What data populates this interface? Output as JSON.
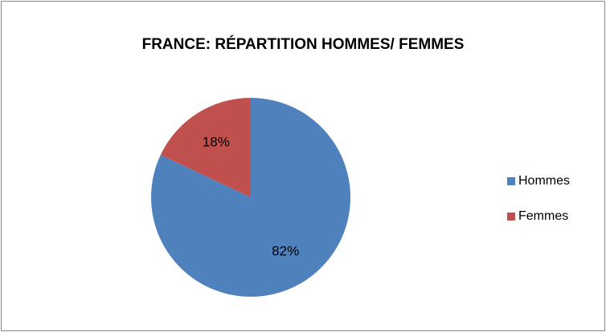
{
  "chart_data": {
    "type": "pie",
    "title": "FRANCE: RÉPARTITION HOMMES/ FEMMES",
    "categories": [
      "Hommes",
      "Femmes"
    ],
    "values": [
      82,
      18
    ],
    "value_labels": [
      "82%",
      "18%"
    ],
    "colors": [
      "#4f81bd",
      "#c0504d"
    ],
    "legend": "right"
  }
}
